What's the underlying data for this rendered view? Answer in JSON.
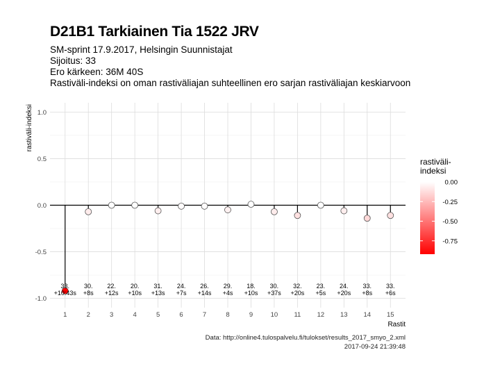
{
  "header": {
    "title": "D21B1 Tarkiainen Tia 1522 JRV",
    "subtitle_lines": [
      "SM-sprint 17.9.2017, Helsingin Suunnistajat",
      "Sijoitus: 33",
      "Ero kärkeen: 36M 40S",
      "Rastiväli-indeksi on oman rastiväliajan suhteellinen ero sarjan rastiväliajan keskiarvoon"
    ]
  },
  "caption": {
    "source": "Data: http://online4.tulospalvelu.fi/tulokset/results_2017_smyo_2.xml",
    "timestamp": "2017-09-24 21:39:48"
  },
  "chart_data": {
    "type": "lollipop",
    "xlabel": "Rastit",
    "ylabel": "rastiväli-indeksi",
    "x": [
      1,
      2,
      3,
      4,
      5,
      6,
      7,
      8,
      9,
      10,
      11,
      12,
      13,
      14,
      15
    ],
    "values": [
      -0.92,
      -0.07,
      0.0,
      0.0,
      -0.06,
      -0.01,
      -0.01,
      -0.05,
      0.01,
      -0.07,
      -0.11,
      0.0,
      -0.06,
      -0.14,
      -0.11
    ],
    "point_labels": [
      [
        "33.",
        "+10:43s"
      ],
      [
        "30.",
        "+8s"
      ],
      [
        "22.",
        "+12s"
      ],
      [
        "20.",
        "+10s"
      ],
      [
        "31.",
        "+13s"
      ],
      [
        "24.",
        "+7s"
      ],
      [
        "26.",
        "+14s"
      ],
      [
        "29.",
        "+4s"
      ],
      [
        "18.",
        "+10s"
      ],
      [
        "30.",
        "+37s"
      ],
      [
        "32.",
        "+20s"
      ],
      [
        "23.",
        "+5s"
      ],
      [
        "24.",
        "+20s"
      ],
      [
        "33.",
        "+8s"
      ],
      [
        "33.",
        "+6s"
      ]
    ],
    "ylim": [
      -1.1,
      1.1
    ],
    "yticks": [
      1.0,
      0.5,
      0.0,
      -0.5,
      -1.0
    ],
    "ytick_labels": [
      "1.0",
      "0.5",
      "0.0",
      "-0.5",
      "-1.0"
    ],
    "grid": true,
    "legend": {
      "title": "rastiväli-\nindeksi",
      "position": "right",
      "ticks": [
        0.0,
        -0.25,
        -0.5,
        -0.75
      ],
      "tick_labels": [
        "0.00",
        "-0.25",
        "-0.50",
        "-0.75"
      ],
      "range": [
        -0.92,
        0.0
      ],
      "color_low": "#ff0000",
      "color_high": "#ffffff"
    }
  }
}
